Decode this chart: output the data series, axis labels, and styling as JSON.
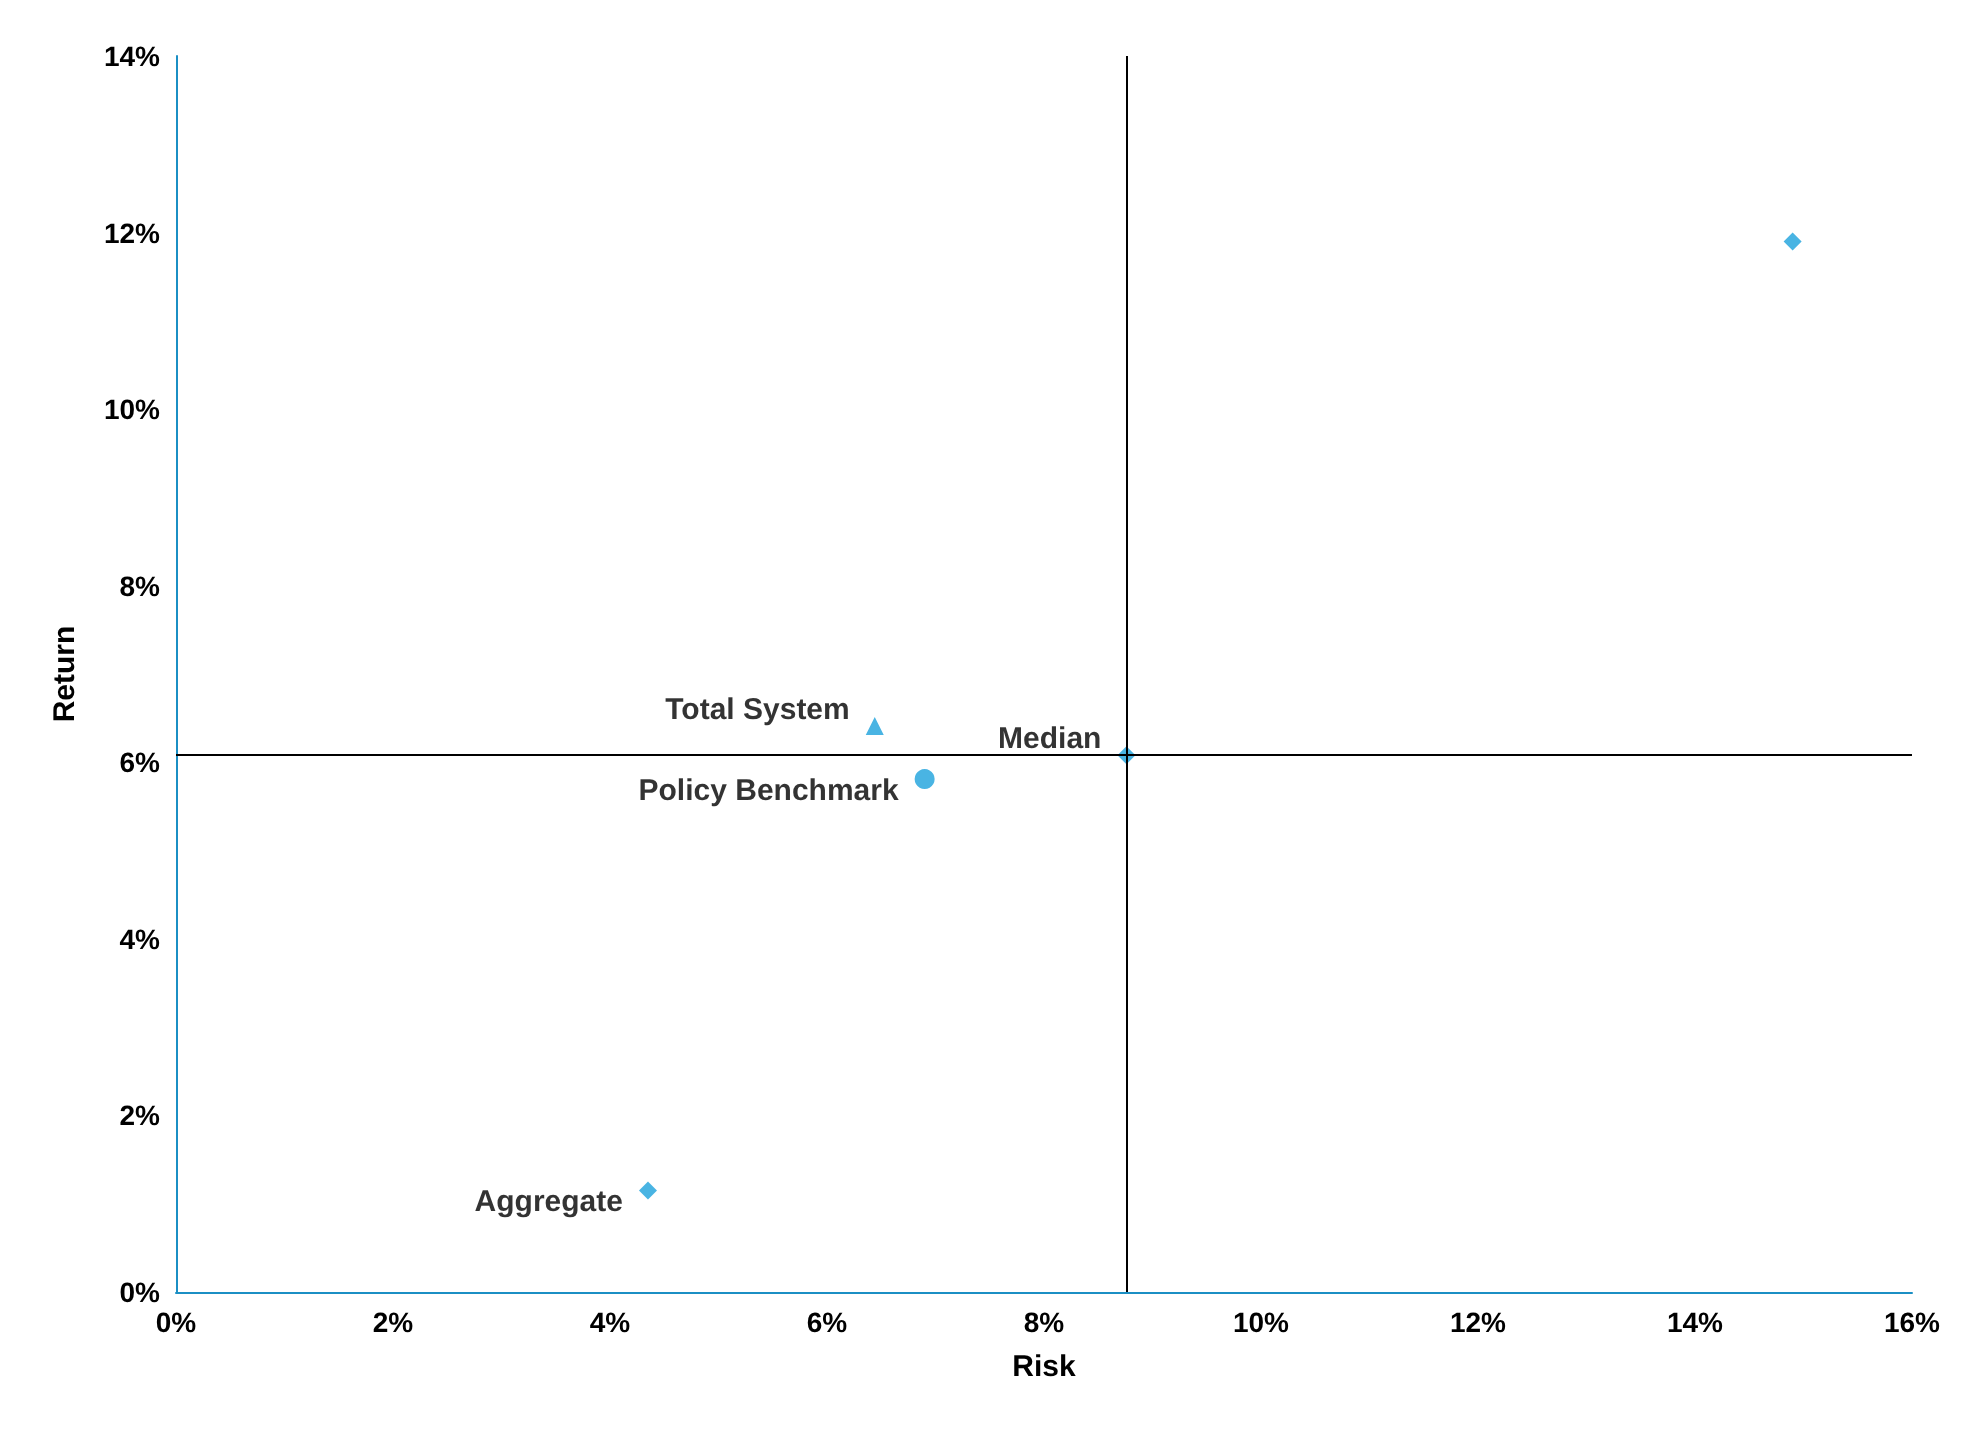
{
  "chart_data": {
    "type": "scatter",
    "xlabel": "Risk",
    "ylabel": "Return",
    "xlim": [
      0,
      16
    ],
    "xticks": [
      {
        "value": 0,
        "label": "0%"
      },
      {
        "value": 2,
        "label": "2%"
      },
      {
        "value": 4,
        "label": "4%"
      },
      {
        "value": 6,
        "label": "6%"
      },
      {
        "value": 8,
        "label": "8%"
      },
      {
        "value": 10,
        "label": "10%"
      },
      {
        "value": 12,
        "label": "12%"
      },
      {
        "value": 14,
        "label": "14%"
      },
      {
        "value": 16,
        "label": "16%"
      }
    ],
    "ylim": [
      0,
      14
    ],
    "yticks": [
      {
        "value": 0,
        "label": "0%"
      },
      {
        "value": 2,
        "label": "2%"
      },
      {
        "value": 4,
        "label": "4%"
      },
      {
        "value": 6,
        "label": "6%"
      },
      {
        "value": 8,
        "label": "8%"
      },
      {
        "value": 10,
        "label": "10%"
      },
      {
        "value": 12,
        "label": "12%"
      },
      {
        "value": 14,
        "label": "14%"
      }
    ],
    "grid": false,
    "legend": false,
    "series": [
      {
        "color": "#1ba1dc",
        "marker": "diamond",
        "x": [
          14.9
        ],
        "values": [
          11.9
        ]
      },
      {
        "name": "Total System",
        "color": "#1ba1dc",
        "marker": "triangle",
        "x": [
          6.44
        ],
        "values": [
          6.41
        ]
      },
      {
        "name": "Policy Benchmark",
        "color": "#1ba1dc",
        "marker": "circle",
        "x": [
          6.9
        ],
        "values": [
          5.81
        ]
      },
      {
        "name": "Median",
        "color": "#1ba1dc",
        "marker": "diamond",
        "x": [
          8.76
        ],
        "values": [
          6.08
        ]
      },
      {
        "name": "Aggregate",
        "color": "#1ba1dc",
        "marker": "diamond",
        "x": [
          4.35
        ],
        "values": [
          1.15
        ]
      }
    ],
    "ref_lines": [
      {
        "axis": "x",
        "value": 8.76,
        "color": "#000000"
      },
      {
        "axis": "y",
        "value": 6.08,
        "color": "#000000"
      }
    ]
  }
}
